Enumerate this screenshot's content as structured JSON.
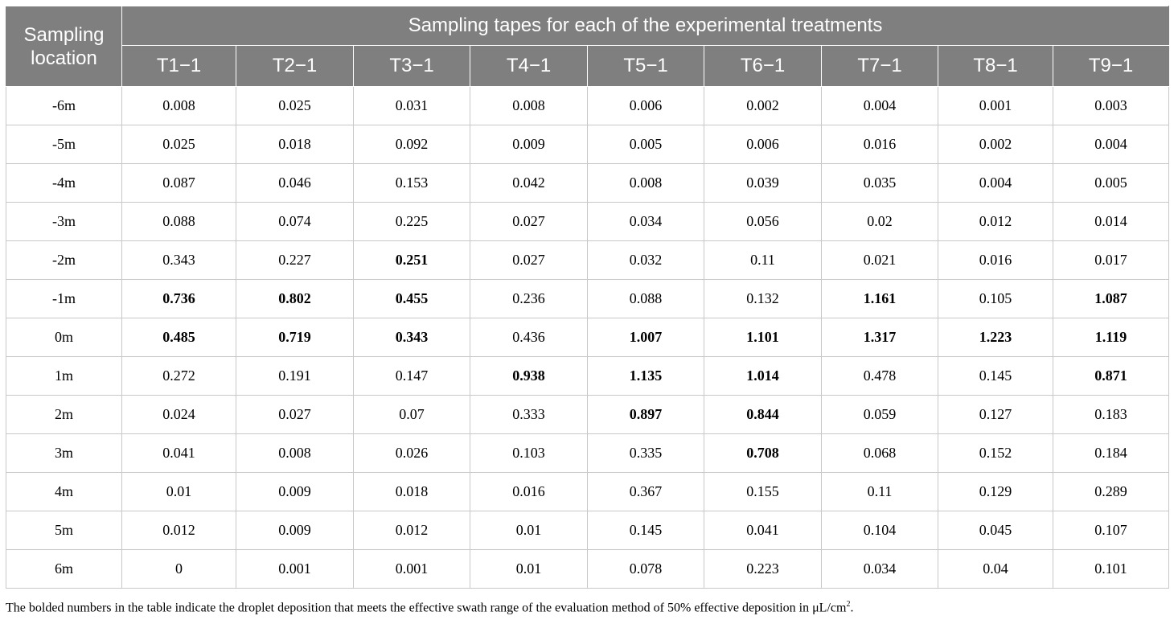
{
  "header": {
    "row_label_header": "Sampling location",
    "group_header": "Sampling tapes for each of the experimental treatments",
    "columns": [
      "T1−1",
      "T2−1",
      "T3−1",
      "T4−1",
      "T5−1",
      "T6−1",
      "T7−1",
      "T8−1",
      "T9−1"
    ]
  },
  "rows": [
    {
      "location": "-6m",
      "values": [
        "0.008",
        "0.025",
        "0.031",
        "0.008",
        "0.006",
        "0.002",
        "0.004",
        "0.001",
        "0.003"
      ],
      "bold": []
    },
    {
      "location": "-5m",
      "values": [
        "0.025",
        "0.018",
        "0.092",
        "0.009",
        "0.005",
        "0.006",
        "0.016",
        "0.002",
        "0.004"
      ],
      "bold": []
    },
    {
      "location": "-4m",
      "values": [
        "0.087",
        "0.046",
        "0.153",
        "0.042",
        "0.008",
        "0.039",
        "0.035",
        "0.004",
        "0.005"
      ],
      "bold": []
    },
    {
      "location": "-3m",
      "values": [
        "0.088",
        "0.074",
        "0.225",
        "0.027",
        "0.034",
        "0.056",
        "0.02",
        "0.012",
        "0.014"
      ],
      "bold": []
    },
    {
      "location": "-2m",
      "values": [
        "0.343",
        "0.227",
        "0.251",
        "0.027",
        "0.032",
        "0.11",
        "0.021",
        "0.016",
        "0.017"
      ],
      "bold": [
        2
      ]
    },
    {
      "location": "-1m",
      "values": [
        "0.736",
        "0.802",
        "0.455",
        "0.236",
        "0.088",
        "0.132",
        "1.161",
        "0.105",
        "1.087"
      ],
      "bold": [
        0,
        1,
        2,
        6,
        8
      ]
    },
    {
      "location": "0m",
      "values": [
        "0.485",
        "0.719",
        "0.343",
        "0.436",
        "1.007",
        "1.101",
        "1.317",
        "1.223",
        "1.119"
      ],
      "bold": [
        0,
        1,
        2,
        4,
        5,
        6,
        7,
        8
      ]
    },
    {
      "location": "1m",
      "values": [
        "0.272",
        "0.191",
        "0.147",
        "0.938",
        "1.135",
        "1.014",
        "0.478",
        "0.145",
        "0.871"
      ],
      "bold": [
        3,
        4,
        5,
        8
      ]
    },
    {
      "location": "2m",
      "values": [
        "0.024",
        "0.027",
        "0.07",
        "0.333",
        "0.897",
        "0.844",
        "0.059",
        "0.127",
        "0.183"
      ],
      "bold": [
        4,
        5
      ]
    },
    {
      "location": "3m",
      "values": [
        "0.041",
        "0.008",
        "0.026",
        "0.103",
        "0.335",
        "0.708",
        "0.068",
        "0.152",
        "0.184"
      ],
      "bold": [
        5
      ]
    },
    {
      "location": "4m",
      "values": [
        "0.01",
        "0.009",
        "0.018",
        "0.016",
        "0.367",
        "0.155",
        "0.11",
        "0.129",
        "0.289"
      ],
      "bold": []
    },
    {
      "location": "5m",
      "values": [
        "0.012",
        "0.009",
        "0.012",
        "0.01",
        "0.145",
        "0.041",
        "0.104",
        "0.045",
        "0.107"
      ],
      "bold": []
    },
    {
      "location": "6m",
      "values": [
        "0",
        "0.001",
        "0.001",
        "0.01",
        "0.078",
        "0.223",
        "0.034",
        "0.04",
        "0.101"
      ],
      "bold": []
    }
  ],
  "footnote": {
    "text": "The bolded numbers in the table indicate the droplet deposition that meets the effective swath range of the evaluation method of 50% effective deposition in μL/cm",
    "superscript": "2",
    "suffix": "."
  },
  "colors": {
    "header_bg": "#7f7f7f",
    "header_text": "#ffffff",
    "grid": "#c8c8c8"
  }
}
